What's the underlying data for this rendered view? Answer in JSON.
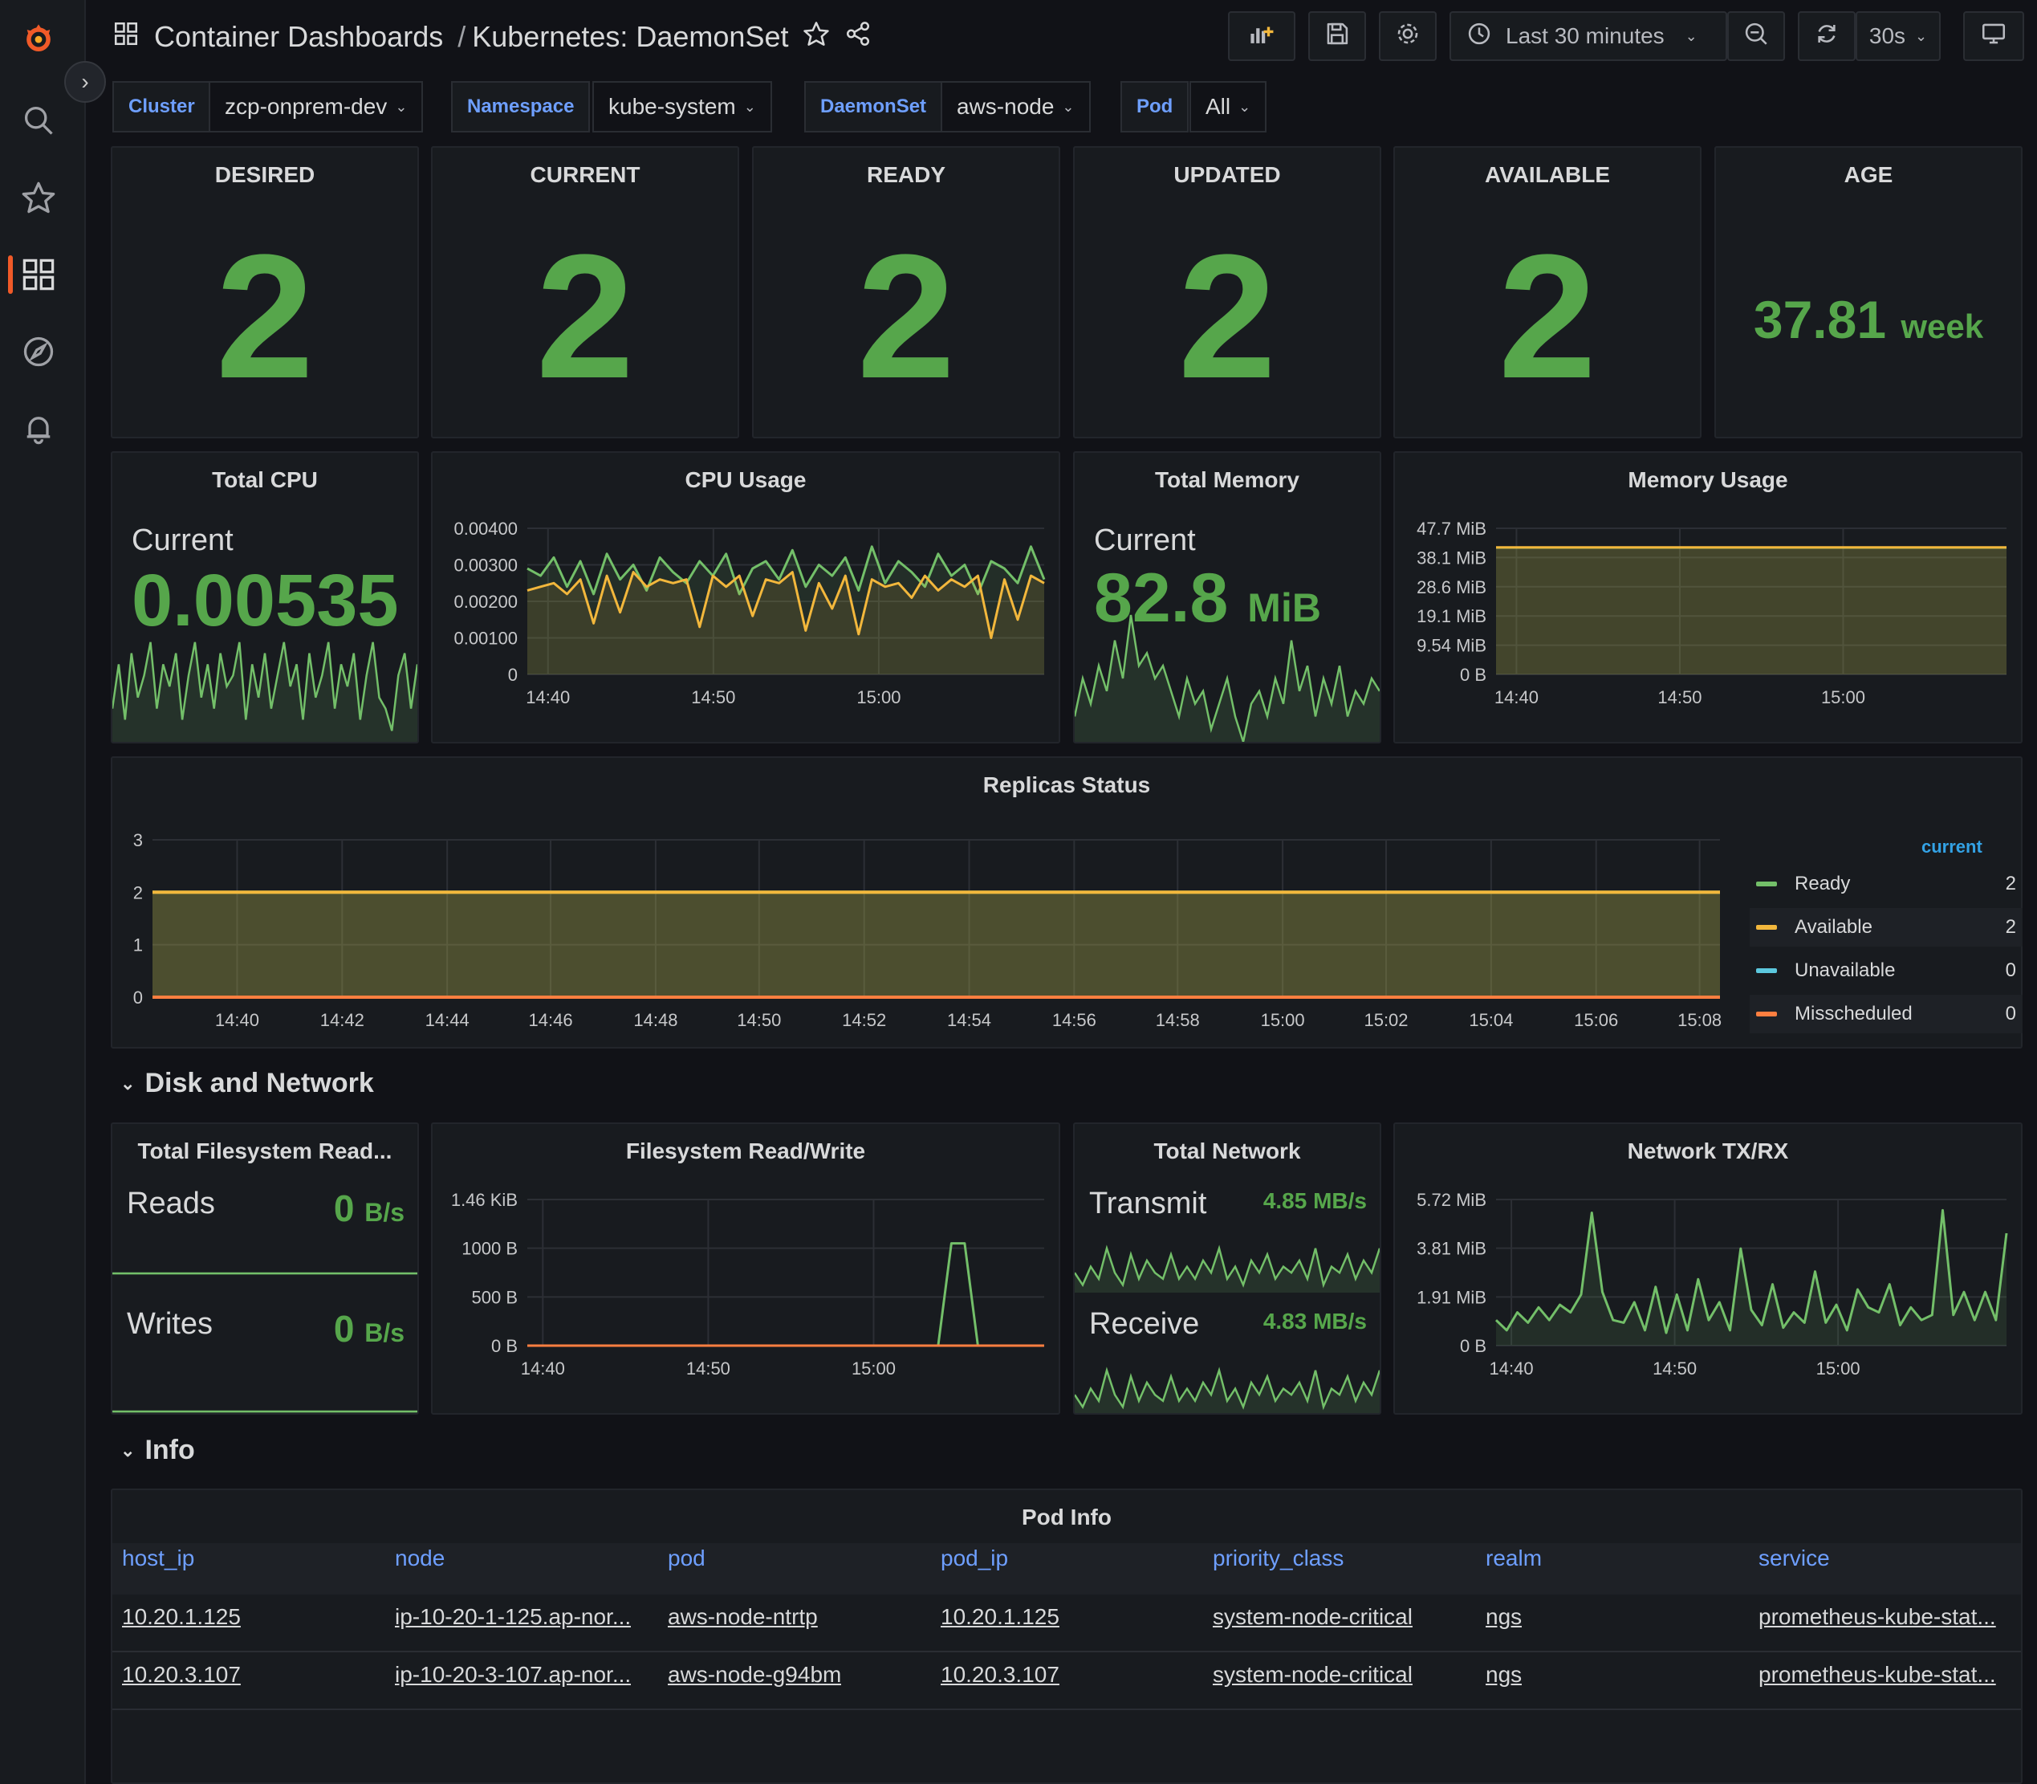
{
  "topbar": {
    "folder": "Container Dashboards",
    "separator": "/",
    "dashboard": "Kubernetes: DaemonSet",
    "time_range": "Last 30 minutes",
    "refresh_interval": "30s"
  },
  "variables": [
    {
      "label": "Cluster",
      "value": "zcp-onprem-dev"
    },
    {
      "label": "Namespace",
      "value": "kube-system"
    },
    {
      "label": "DaemonSet",
      "value": "aws-node"
    },
    {
      "label": "Pod",
      "value": "All"
    }
  ],
  "stats": {
    "desired": {
      "title": "DESIRED",
      "value": "2"
    },
    "current": {
      "title": "CURRENT",
      "value": "2"
    },
    "ready": {
      "title": "READY",
      "value": "2"
    },
    "updated": {
      "title": "UPDATED",
      "value": "2"
    },
    "available": {
      "title": "AVAILABLE",
      "value": "2"
    },
    "age": {
      "title": "AGE",
      "value": "37.81",
      "unit": "week"
    }
  },
  "total_cpu": {
    "title": "Total CPU",
    "label": "Current",
    "value": "0.00535"
  },
  "cpu_usage": {
    "title": "CPU Usage"
  },
  "total_memory": {
    "title": "Total Memory",
    "label": "Current",
    "value": "82.8",
    "unit": "MiB"
  },
  "memory_usage": {
    "title": "Memory Usage"
  },
  "replicas": {
    "title": "Replicas Status",
    "legend_header": "current",
    "legend": [
      {
        "name": "Ready",
        "value": "2",
        "color": "#73bf69"
      },
      {
        "name": "Available",
        "value": "2",
        "color": "#f2b73c"
      },
      {
        "name": "Unavailable",
        "value": "0",
        "color": "#5cc8de"
      },
      {
        "name": "Misscheduled",
        "value": "0",
        "color": "#ff7f40"
      }
    ]
  },
  "sections": {
    "disk_network": "Disk and Network",
    "info": "Info"
  },
  "fs_total": {
    "title": "Total Filesystem Read...",
    "reads_label": "Reads",
    "reads_value": "0",
    "reads_unit": "B/s",
    "writes_label": "Writes",
    "writes_value": "0",
    "writes_unit": "B/s"
  },
  "fs_rw": {
    "title": "Filesystem Read/Write"
  },
  "net_total": {
    "title": "Total Network",
    "tx_label": "Transmit",
    "tx_value": "4.85 MB/s",
    "rx_label": "Receive",
    "rx_value": "4.83 MB/s"
  },
  "net_txrx": {
    "title": "Network TX/RX"
  },
  "pod_info": {
    "title": "Pod Info",
    "columns": [
      "host_ip",
      "node",
      "pod",
      "pod_ip",
      "priority_class",
      "realm",
      "service"
    ],
    "rows": [
      [
        "10.20.1.125",
        "ip-10-20-1-125.ap-nor...",
        "aws-node-ntrtp",
        "10.20.1.125",
        "system-node-critical",
        "ngs",
        "prometheus-kube-stat..."
      ],
      [
        "10.20.3.107",
        "ip-10-20-3-107.ap-nor...",
        "aws-node-g94bm",
        "10.20.3.107",
        "system-node-critical",
        "ngs",
        "prometheus-kube-stat..."
      ]
    ]
  },
  "chart_data": [
    {
      "type": "line",
      "title": "CPU Usage",
      "x_ticks": [
        "14:40",
        "14:50",
        "15:00"
      ],
      "y_ticks": [
        "0",
        "0.00100",
        "0.00200",
        "0.00300",
        "0.00400"
      ],
      "ylim": [
        0,
        0.004
      ],
      "series": [
        {
          "color": "#73bf69",
          "values": [
            0.0029,
            0.0027,
            0.0032,
            0.0024,
            0.0031,
            0.0022,
            0.0033,
            0.0026,
            0.003,
            0.0023,
            0.0032,
            0.0028,
            0.0025,
            0.0031,
            0.0027,
            0.0033,
            0.0022,
            0.0029,
            0.0031,
            0.0026,
            0.0034,
            0.0024,
            0.003,
            0.0027,
            0.0032,
            0.0023,
            0.0035,
            0.0025,
            0.0031,
            0.0028,
            0.0024,
            0.0033,
            0.0027,
            0.003,
            0.0022,
            0.0031,
            0.0029,
            0.0025,
            0.0035,
            0.0026
          ]
        },
        {
          "color": "#f2b73c",
          "values": [
            0.0023,
            0.0024,
            0.0025,
            0.0022,
            0.0026,
            0.0014,
            0.0027,
            0.0017,
            0.0028,
            0.0024,
            0.0026,
            0.0025,
            0.0026,
            0.0013,
            0.0027,
            0.0024,
            0.0027,
            0.0016,
            0.0026,
            0.0025,
            0.0028,
            0.0012,
            0.0025,
            0.0018,
            0.0027,
            0.0011,
            0.0026,
            0.0024,
            0.0025,
            0.0021,
            0.0027,
            0.0023,
            0.0026,
            0.0024,
            0.0027,
            0.001,
            0.0026,
            0.0015,
            0.0027,
            0.0025
          ]
        }
      ]
    },
    {
      "type": "line",
      "title": "Memory Usage",
      "x_ticks": [
        "14:40",
        "14:50",
        "15:00"
      ],
      "y_ticks": [
        "0 B",
        "9.54 MiB",
        "19.1 MiB",
        "28.6 MiB",
        "38.1 MiB",
        "47.7 MiB"
      ],
      "ylim": [
        0,
        47.7
      ],
      "series": [
        {
          "color": "#73bf69",
          "values": [
            41.4,
            41.4,
            41.4,
            41.4,
            41.4,
            41.4
          ]
        },
        {
          "color": "#f2b73c",
          "values": [
            41.5,
            41.5,
            41.5,
            41.5,
            41.5,
            41.5
          ]
        }
      ]
    },
    {
      "type": "area",
      "title": "Replicas Status",
      "x_ticks": [
        "14:40",
        "14:42",
        "14:44",
        "14:46",
        "14:48",
        "14:50",
        "14:52",
        "14:54",
        "14:56",
        "14:58",
        "15:00",
        "15:02",
        "15:04",
        "15:06",
        "15:08"
      ],
      "y_ticks": [
        "0",
        "1",
        "2",
        "3"
      ],
      "ylim": [
        0,
        3
      ],
      "series": [
        {
          "name": "Ready",
          "color": "#73bf69",
          "values": [
            2,
            2
          ]
        },
        {
          "name": "Available",
          "color": "#f2b73c",
          "values": [
            2,
            2
          ]
        },
        {
          "name": "Unavailable",
          "color": "#5cc8de",
          "values": [
            0,
            0
          ]
        },
        {
          "name": "Misscheduled",
          "color": "#ff7f40",
          "values": [
            0,
            0
          ]
        }
      ]
    },
    {
      "type": "line",
      "title": "Filesystem Read/Write",
      "x_ticks": [
        "14:40",
        "14:50",
        "15:00"
      ],
      "y_ticks": [
        "0 B",
        "500 B",
        "1000 B",
        "1.46 KiB"
      ],
      "ylim": [
        0,
        1500
      ],
      "series": [
        {
          "color": "#73bf69",
          "values": [
            0,
            0,
            0,
            0,
            0,
            0,
            0,
            0,
            0,
            0,
            0,
            0,
            0,
            0,
            0,
            0,
            0,
            0,
            0,
            0,
            0,
            0,
            0,
            0,
            0,
            0,
            0,
            0,
            0,
            0,
            0,
            0,
            1050,
            1050,
            0,
            0,
            0,
            0,
            0,
            0
          ]
        },
        {
          "color": "#ff7f40",
          "values": [
            0,
            0,
            0,
            0,
            0,
            0,
            0,
            0,
            0,
            0,
            0,
            0,
            0,
            0,
            0,
            0,
            0,
            0,
            0,
            0,
            0,
            0,
            0,
            0,
            0,
            0,
            0,
            0,
            0,
            0,
            0,
            0,
            0,
            0,
            0,
            0,
            0,
            0,
            0,
            0
          ]
        }
      ]
    },
    {
      "type": "line",
      "title": "Network TX/RX",
      "x_ticks": [
        "14:40",
        "14:50",
        "15:00"
      ],
      "y_ticks": [
        "0 B",
        "1.91 MiB",
        "3.81 MiB",
        "5.72 MiB"
      ],
      "ylim": [
        0,
        5.72
      ],
      "series": [
        {
          "color": "#73bf69",
          "values": [
            1.0,
            0.6,
            1.3,
            0.9,
            1.5,
            1.0,
            1.6,
            1.3,
            2.0,
            5.2,
            2.1,
            1.0,
            0.9,
            1.7,
            0.6,
            2.3,
            0.5,
            2.0,
            0.6,
            2.6,
            1.0,
            1.7,
            0.6,
            3.8,
            1.4,
            0.8,
            2.4,
            0.7,
            1.3,
            0.9,
            2.9,
            0.9,
            1.6,
            0.6,
            2.2,
            1.5,
            1.3,
            2.4,
            0.8,
            1.5,
            1.0,
            1.2,
            5.3,
            1.2,
            2.1,
            1.0,
            2.1,
            1.0,
            4.4
          ]
        }
      ]
    }
  ],
  "sparklines": {
    "total_cpu": [
      0.3,
      0.7,
      0.2,
      0.8,
      0.4,
      0.6,
      0.9,
      0.3,
      0.7,
      0.5,
      0.8,
      0.2,
      0.6,
      0.9,
      0.4,
      0.7,
      0.3,
      0.8,
      0.5,
      0.6,
      0.9,
      0.2,
      0.7,
      0.4,
      0.8,
      0.3,
      0.6,
      0.9,
      0.5,
      0.7,
      0.2,
      0.8,
      0.4,
      0.6,
      0.9,
      0.3,
      0.7,
      0.5,
      0.8,
      0.2,
      0.6,
      0.9,
      0.4,
      0.3,
      0.1,
      0.6,
      0.8,
      0.3,
      0.7
    ],
    "total_memory": [
      0.2,
      0.5,
      0.3,
      0.6,
      0.4,
      0.8,
      0.5,
      1.0,
      0.6,
      0.7,
      0.5,
      0.6,
      0.4,
      0.2,
      0.5,
      0.3,
      0.4,
      0.1,
      0.3,
      0.5,
      0.2,
      0.0,
      0.3,
      0.4,
      0.2,
      0.5,
      0.3,
      0.8,
      0.4,
      0.6,
      0.2,
      0.5,
      0.3,
      0.6,
      0.2,
      0.4,
      0.3,
      0.5,
      0.4
    ],
    "fs_reads": [
      0,
      0,
      0,
      0,
      0,
      0,
      0,
      0,
      0,
      0
    ],
    "fs_writes": [
      0,
      0,
      0,
      0,
      0,
      0,
      0,
      0,
      0,
      0
    ],
    "net_tx": [
      0.3,
      0.1,
      0.4,
      0.2,
      0.7,
      0.3,
      0.1,
      0.6,
      0.2,
      0.5,
      0.3,
      0.2,
      0.6,
      0.2,
      0.4,
      0.2,
      0.5,
      0.3,
      0.7,
      0.2,
      0.4,
      0.1,
      0.5,
      0.3,
      0.6,
      0.2,
      0.4,
      0.3,
      0.5,
      0.2,
      0.7,
      0.1,
      0.4,
      0.3,
      0.6,
      0.2,
      0.5,
      0.3,
      0.7
    ],
    "net_rx": [
      0.3,
      0.1,
      0.4,
      0.2,
      0.7,
      0.3,
      0.1,
      0.6,
      0.2,
      0.5,
      0.3,
      0.2,
      0.6,
      0.2,
      0.4,
      0.2,
      0.5,
      0.3,
      0.7,
      0.2,
      0.4,
      0.1,
      0.5,
      0.3,
      0.6,
      0.2,
      0.4,
      0.3,
      0.5,
      0.2,
      0.7,
      0.1,
      0.4,
      0.3,
      0.6,
      0.2,
      0.5,
      0.3,
      0.7
    ]
  }
}
